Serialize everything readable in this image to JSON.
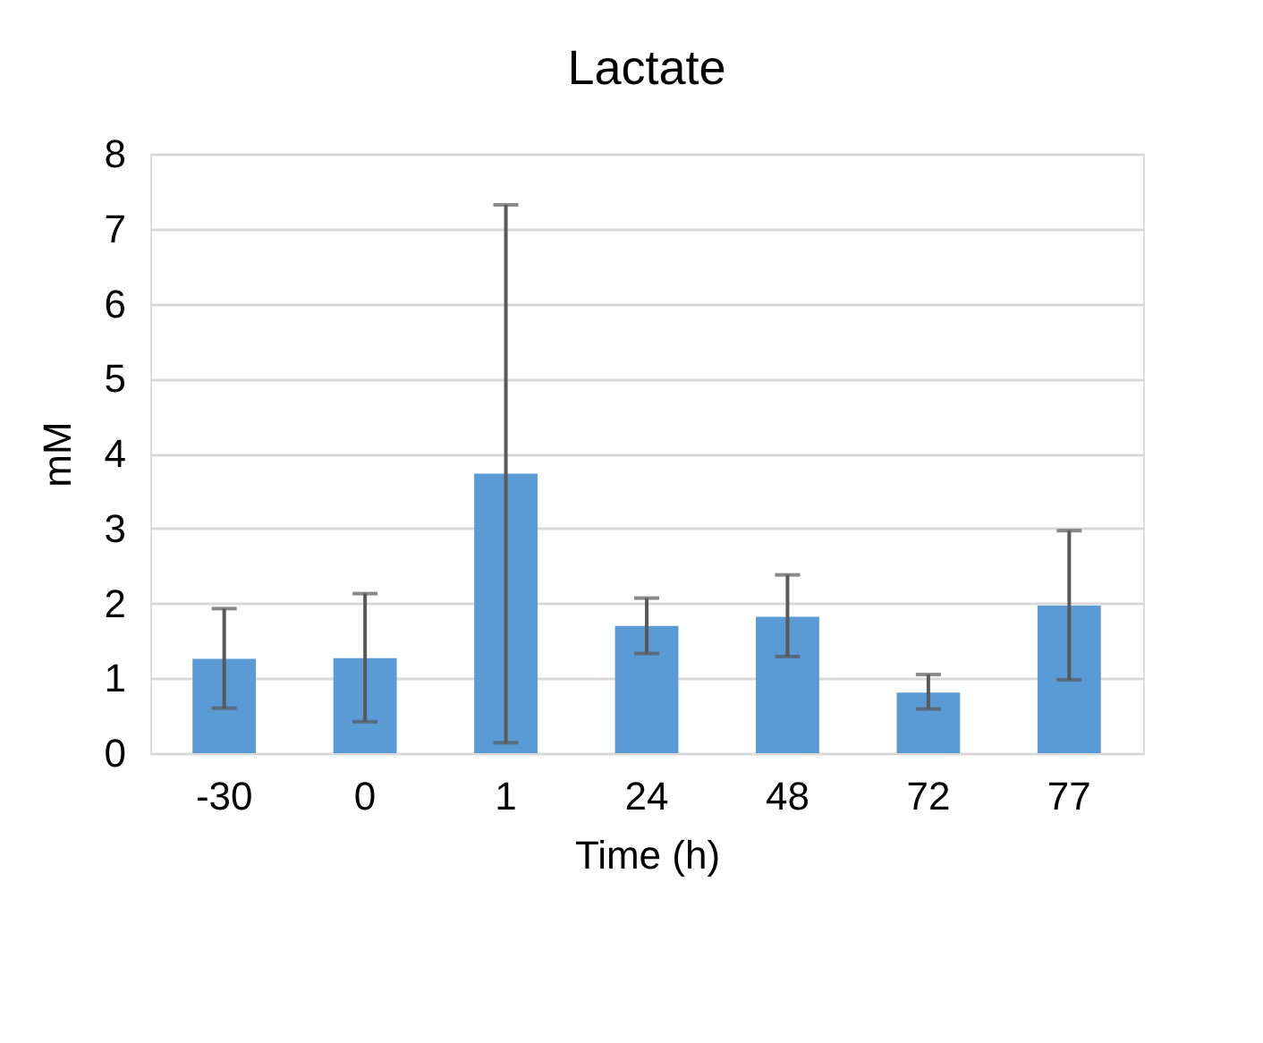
{
  "chart_data": {
    "type": "bar",
    "title": "Lactate",
    "xlabel": "Time (h)",
    "ylabel": "mM",
    "categories": [
      "-30",
      "0",
      "1",
      "24",
      "48",
      "72",
      "77"
    ],
    "values": [
      1.26,
      1.27,
      3.73,
      1.7,
      1.82,
      0.81,
      1.97
    ],
    "errors": [
      [
        0.6,
        1.93
      ],
      [
        0.42,
        2.13
      ],
      [
        0.14,
        7.32
      ],
      [
        1.33,
        2.07
      ],
      [
        1.29,
        2.38
      ],
      [
        0.59,
        1.05
      ],
      [
        0.98,
        2.97
      ]
    ],
    "color": "#5b9bd5",
    "ylim": [
      0,
      8
    ],
    "yticks": [
      0,
      1,
      2,
      3,
      4,
      5,
      6,
      7,
      8
    ],
    "grid": "y"
  }
}
